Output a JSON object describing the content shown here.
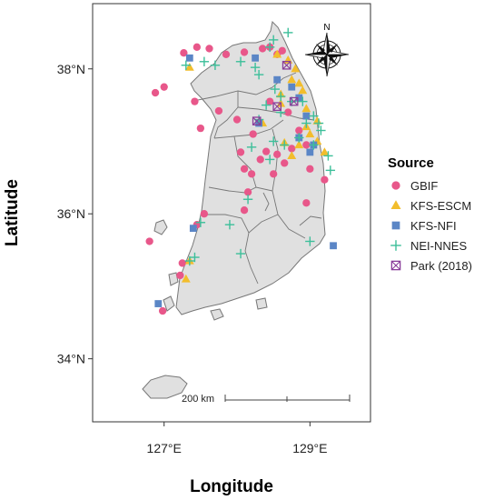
{
  "map": {
    "x_axis_title": "Longitude",
    "y_axis_title": "Latitude",
    "x_ticks": [
      {
        "lon": 127,
        "label": "127°E"
      },
      {
        "lon": 129,
        "label": "129°E"
      }
    ],
    "y_ticks": [
      {
        "lat": 38,
        "label": "38°N"
      },
      {
        "lat": 36,
        "label": "36°N"
      },
      {
        "lat": 34,
        "label": "34°N"
      }
    ],
    "lon_range": [
      126.02,
      129.83
    ],
    "lat_range": [
      33.13,
      38.9
    ],
    "scale_bar_label": "200 km",
    "north_label": "N",
    "land_color": "#e0e0e0",
    "border_color": "#777777"
  },
  "legend": {
    "title": "Source",
    "entries": [
      {
        "label": "GBIF",
        "color": "#e8578a",
        "shape": "circle"
      },
      {
        "label": "KFS-ESCM",
        "color": "#f2bd2c",
        "shape": "triangle"
      },
      {
        "label": "KFS-NFI",
        "color": "#5b86c6",
        "shape": "square"
      },
      {
        "label": "NEI-NNES",
        "color": "#3dbf9a",
        "shape": "plus"
      },
      {
        "label": "Park (2018)",
        "color": "#8a3e9a",
        "shape": "boxx"
      }
    ]
  },
  "chart_data": {
    "type": "scatter",
    "xlabel": "Longitude",
    "ylabel": "Latitude",
    "xlim": [
      126.02,
      129.83
    ],
    "ylim": [
      33.13,
      38.9
    ],
    "series": [
      {
        "name": "GBIF",
        "points": [
          [
            127.27,
            38.22
          ],
          [
            127.45,
            38.3
          ],
          [
            127.62,
            38.28
          ],
          [
            127.85,
            38.2
          ],
          [
            128.1,
            38.23
          ],
          [
            128.35,
            38.28
          ],
          [
            128.55,
            38.2
          ],
          [
            128.45,
            38.3
          ],
          [
            128.62,
            38.25
          ],
          [
            126.88,
            37.67
          ],
          [
            127.0,
            37.75
          ],
          [
            127.42,
            37.55
          ],
          [
            127.5,
            37.18
          ],
          [
            127.75,
            37.42
          ],
          [
            128.0,
            37.3
          ],
          [
            128.45,
            37.55
          ],
          [
            128.22,
            37.1
          ],
          [
            128.7,
            37.4
          ],
          [
            128.85,
            37.15
          ],
          [
            128.95,
            36.95
          ],
          [
            128.4,
            36.86
          ],
          [
            128.55,
            36.82
          ],
          [
            128.32,
            36.75
          ],
          [
            128.65,
            36.7
          ],
          [
            128.75,
            36.9
          ],
          [
            128.1,
            36.62
          ],
          [
            128.2,
            36.55
          ],
          [
            128.15,
            36.3
          ],
          [
            128.1,
            36.05
          ],
          [
            127.55,
            36.0
          ],
          [
            127.45,
            35.85
          ],
          [
            128.5,
            36.55
          ],
          [
            129.0,
            36.62
          ],
          [
            129.2,
            36.47
          ],
          [
            128.95,
            36.15
          ],
          [
            127.25,
            35.32
          ],
          [
            127.22,
            35.15
          ],
          [
            126.8,
            35.62
          ],
          [
            126.98,
            34.66
          ],
          [
            128.05,
            36.85
          ]
        ]
      },
      {
        "name": "KFS-ESCM",
        "points": [
          [
            127.35,
            38.02
          ],
          [
            128.55,
            38.2
          ],
          [
            128.7,
            38.12
          ],
          [
            128.8,
            38.0
          ],
          [
            128.75,
            37.85
          ],
          [
            128.85,
            37.8
          ],
          [
            128.9,
            37.7
          ],
          [
            128.85,
            37.6
          ],
          [
            128.6,
            37.65
          ],
          [
            128.6,
            37.52
          ],
          [
            128.95,
            37.45
          ],
          [
            129.1,
            37.28
          ],
          [
            128.95,
            37.2
          ],
          [
            129.0,
            37.1
          ],
          [
            129.1,
            37.0
          ],
          [
            128.85,
            36.95
          ],
          [
            129.2,
            36.85
          ],
          [
            128.75,
            36.8
          ],
          [
            128.35,
            37.25
          ],
          [
            128.65,
            36.98
          ],
          [
            127.3,
            35.1
          ],
          [
            127.35,
            35.35
          ]
        ]
      },
      {
        "name": "KFS-NFI",
        "points": [
          [
            127.35,
            38.15
          ],
          [
            128.25,
            38.15
          ],
          [
            128.55,
            37.85
          ],
          [
            128.75,
            37.75
          ],
          [
            128.85,
            37.6
          ],
          [
            128.95,
            37.35
          ],
          [
            128.85,
            37.05
          ],
          [
            129.05,
            36.95
          ],
          [
            129.0,
            36.85
          ],
          [
            128.3,
            37.25
          ],
          [
            127.4,
            35.8
          ],
          [
            129.32,
            35.56
          ],
          [
            126.92,
            34.76
          ]
        ]
      },
      {
        "name": "NEI-NNES",
        "points": [
          [
            127.3,
            38.05
          ],
          [
            127.55,
            38.1
          ],
          [
            127.7,
            38.05
          ],
          [
            128.05,
            38.1
          ],
          [
            128.25,
            38.02
          ],
          [
            128.3,
            37.92
          ],
          [
            128.45,
            38.3
          ],
          [
            128.5,
            38.4
          ],
          [
            128.7,
            38.5
          ],
          [
            128.52,
            37.72
          ],
          [
            128.6,
            37.62
          ],
          [
            128.75,
            37.55
          ],
          [
            128.9,
            37.55
          ],
          [
            129.05,
            37.35
          ],
          [
            129.12,
            37.25
          ],
          [
            128.95,
            37.25
          ],
          [
            129.15,
            37.15
          ],
          [
            128.85,
            37.05
          ],
          [
            129.05,
            36.95
          ],
          [
            129.25,
            36.8
          ],
          [
            129.28,
            36.6
          ],
          [
            128.65,
            36.95
          ],
          [
            128.45,
            36.75
          ],
          [
            128.4,
            37.5
          ],
          [
            128.3,
            37.3
          ],
          [
            128.5,
            37.0
          ],
          [
            128.2,
            36.92
          ],
          [
            128.6,
            37.4
          ],
          [
            128.15,
            36.2
          ],
          [
            127.9,
            35.85
          ],
          [
            128.05,
            35.45
          ],
          [
            127.42,
            35.4
          ],
          [
            127.35,
            35.35
          ],
          [
            129.0,
            35.62
          ],
          [
            127.5,
            35.88
          ]
        ]
      },
      {
        "name": "Park (2018)",
        "points": [
          [
            128.68,
            38.05
          ],
          [
            128.55,
            37.48
          ],
          [
            128.78,
            37.55
          ],
          [
            128.27,
            37.28
          ]
        ]
      }
    ]
  }
}
